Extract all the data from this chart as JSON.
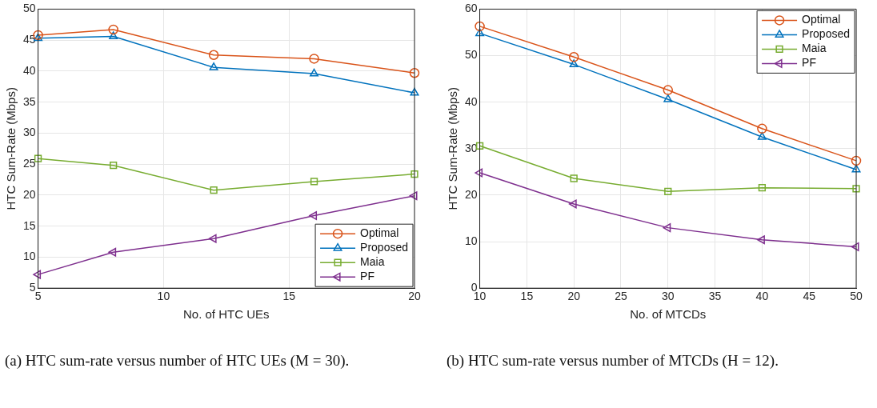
{
  "chart_data": [
    {
      "type": "line",
      "xlabel": "No. of HTC UEs",
      "ylabel": "HTC Sum-Rate (Mbps)",
      "x": [
        5,
        8,
        12,
        16,
        20
      ],
      "xlim": [
        5,
        20
      ],
      "xticks": [
        5,
        10,
        15,
        20
      ],
      "ylim": [
        5,
        50
      ],
      "yticks": [
        5,
        10,
        15,
        20,
        25,
        30,
        35,
        40,
        45,
        50
      ],
      "grid": true,
      "legend": "bottom right",
      "line_style": "solid",
      "series": [
        {
          "name": "Optimal",
          "color": "#d95319",
          "marker": "circle",
          "values": [
            45.8,
            46.7,
            42.6,
            42.0,
            39.7
          ]
        },
        {
          "name": "Proposed",
          "color": "#0072bd",
          "marker": "triangle",
          "values": [
            45.3,
            45.6,
            40.6,
            39.6,
            36.5
          ]
        },
        {
          "name": "Maia",
          "color": "#77ac30",
          "marker": "square",
          "values": [
            25.9,
            24.8,
            20.8,
            22.2,
            23.4
          ]
        },
        {
          "name": "PF",
          "color": "#7e2f8e",
          "marker": "triangle-left",
          "values": [
            7.2,
            10.8,
            13.0,
            16.7,
            19.9
          ]
        }
      ],
      "annotations": [
        "(a) HTC sum-rate versus number of HTC UEs (M = 30)."
      ]
    },
    {
      "type": "line",
      "xlabel": "No. of MTCDs",
      "ylabel": "HTC Sum-Rate (Mbps)",
      "x": [
        10,
        20,
        30,
        40,
        50
      ],
      "xlim": [
        10,
        50
      ],
      "xticks": [
        10,
        15,
        20,
        25,
        30,
        35,
        40,
        45,
        50
      ],
      "ylim": [
        0,
        60
      ],
      "yticks": [
        0,
        10,
        20,
        30,
        40,
        50,
        60
      ],
      "grid": true,
      "legend": "top right",
      "line_style": "solid",
      "series": [
        {
          "name": "Optimal",
          "color": "#d95319",
          "marker": "circle",
          "values": [
            56.3,
            49.7,
            42.6,
            34.3,
            27.4
          ]
        },
        {
          "name": "Proposed",
          "color": "#0072bd",
          "marker": "triangle",
          "values": [
            54.8,
            48.1,
            40.6,
            32.5,
            25.5
          ]
        },
        {
          "name": "Maia",
          "color": "#77ac30",
          "marker": "square",
          "values": [
            30.6,
            23.6,
            20.8,
            21.6,
            21.4
          ]
        },
        {
          "name": "PF",
          "color": "#7e2f8e",
          "marker": "triangle-left",
          "values": [
            24.8,
            18.1,
            13.0,
            10.4,
            8.9
          ]
        }
      ],
      "annotations": [
        "(b) HTC sum-rate versus number of MTCDs (H = 12)."
      ]
    }
  ]
}
